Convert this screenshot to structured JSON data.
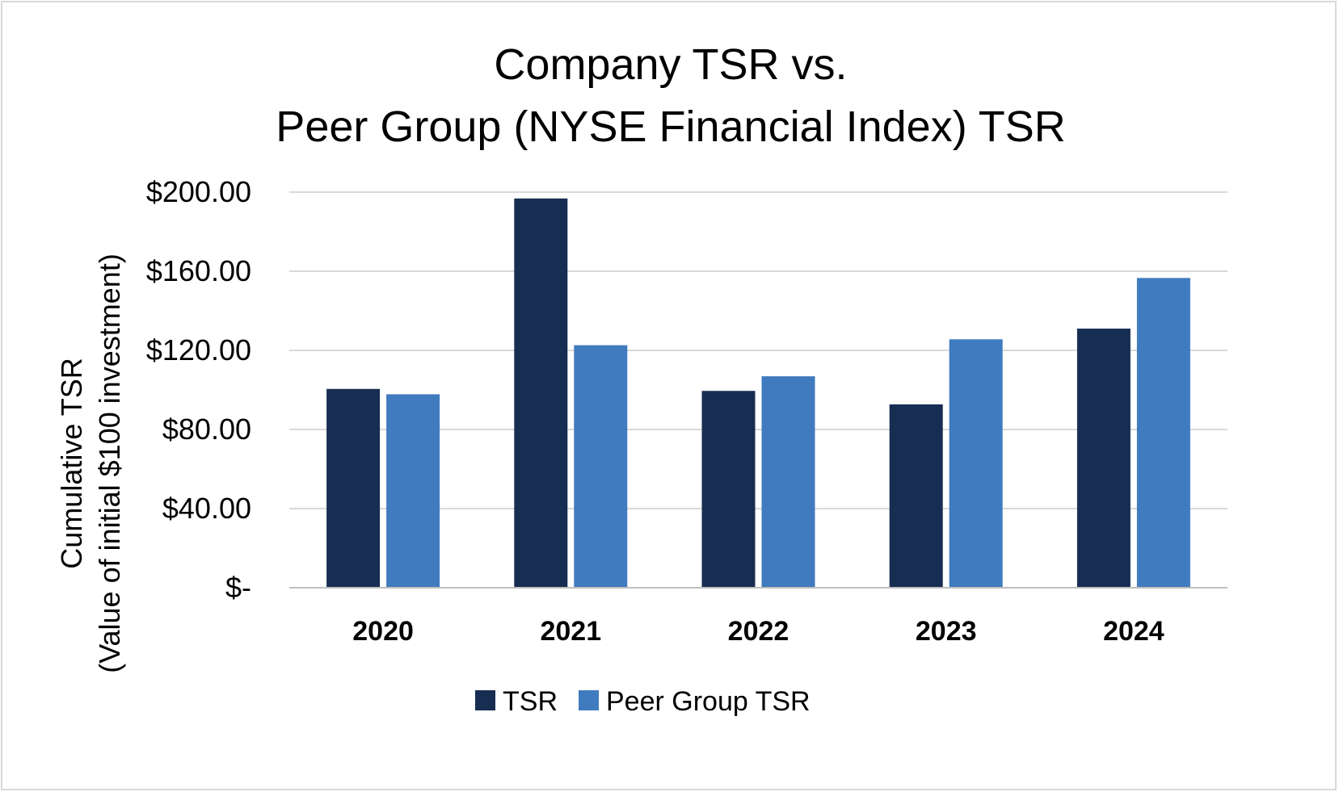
{
  "chart_data": {
    "type": "bar",
    "title_lines": [
      "Company TSR vs.",
      "Peer Group (NYSE Financial Index) TSR"
    ],
    "ylabel_lines": [
      "Cumulative TSR",
      "(Value of initial $100 investment)"
    ],
    "xlabel": "",
    "categories": [
      "2020",
      "2021",
      "2022",
      "2023",
      "2024"
    ],
    "series": [
      {
        "name": "TSR",
        "color": "#172d52",
        "values": [
          100.5,
          196.8,
          99.5,
          92.7,
          131.0
        ]
      },
      {
        "name": "Peer Group TSR",
        "color": "#407bbf",
        "values": [
          97.8,
          122.6,
          106.9,
          125.6,
          156.6
        ]
      }
    ],
    "ylim": [
      0,
      200
    ],
    "yticks": [
      0,
      40,
      80,
      120,
      160,
      200
    ],
    "ytick_labels": [
      "$-",
      "$40.00",
      "$80.00",
      "$120.00",
      "$160.00",
      "$200.00"
    ],
    "grid": true,
    "legend_position": "bottom-center"
  }
}
